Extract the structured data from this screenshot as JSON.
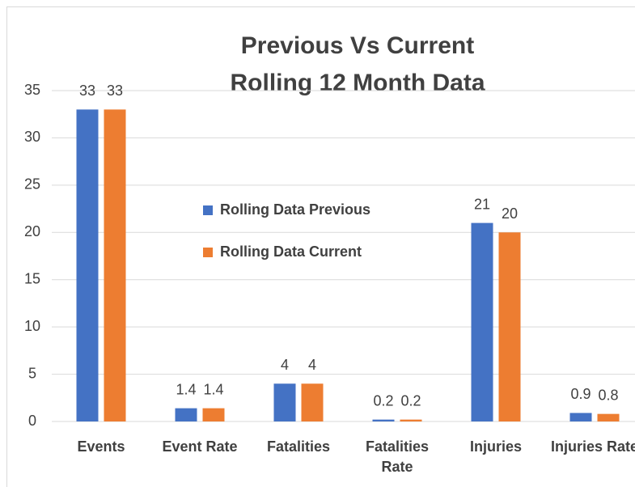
{
  "chart_data": {
    "type": "bar",
    "title": [
      "Previous Vs Current",
      "Rolling 12 Month Data"
    ],
    "categories": [
      "Events",
      "Event Rate",
      "Fatalities",
      "Fatalities Rate",
      "Injuries",
      "Injuries Rate"
    ],
    "series": [
      {
        "name": "Rolling Data Previous",
        "color": "#4472c4",
        "values": [
          33,
          1.4,
          4,
          0.2,
          21,
          0.9
        ]
      },
      {
        "name": "Rolling Data Current",
        "color": "#ed7d31",
        "values": [
          33,
          1.4,
          4,
          0.2,
          20,
          0.8
        ]
      }
    ],
    "ylim": [
      0,
      35
    ],
    "yticks": [
      0,
      5,
      10,
      15,
      20,
      25,
      30,
      35
    ],
    "grid": true,
    "legend": "center"
  }
}
